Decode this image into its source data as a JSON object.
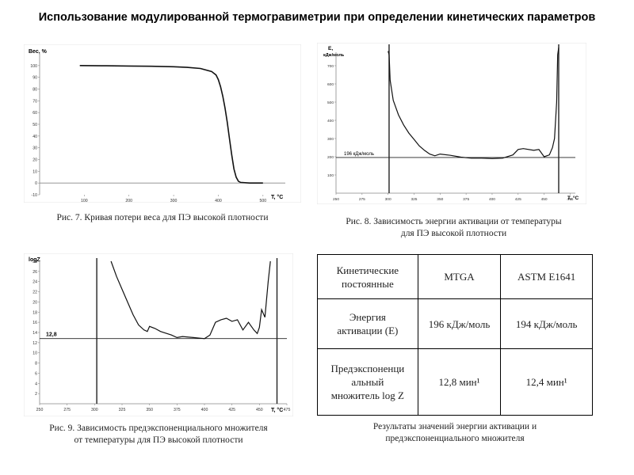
{
  "title": "Использование модулированной термогравиметрии при определении кинетических параметров",
  "figures": {
    "fig7": {
      "caption": "Рис. 7. Кривая потери веса для ПЭ высокой плотности",
      "ylabel": "Вес, %",
      "xlabel": "T, °C"
    },
    "fig8": {
      "caption_line1": "Рис. 8. Зависимость энергии активации от температуры",
      "caption_line2": "для ПЭ высокой плотности",
      "ylabel_line1": "E,",
      "ylabel_line2": "кДж/моль",
      "xlabel": "T, °C",
      "annotation": "196 кДж/моль"
    },
    "fig9": {
      "caption_line1": "Рис. 9. Зависимость предэкспоненциального множителя",
      "caption_line2": "от температуры для ПЭ высокой плотности",
      "ylabel": "logZ",
      "xlabel": "T, °C",
      "annotation": "12,8"
    }
  },
  "chart_data": [
    {
      "type": "line",
      "ylabel": "Вес, %",
      "xlabel": "T, °C",
      "xlim": [
        0,
        550
      ],
      "ylim": [
        -10,
        110
      ],
      "xticks": [
        "100",
        "200",
        "300",
        "400",
        "500"
      ],
      "yticks": [
        "-10",
        "0",
        "10",
        "20",
        "30",
        "40",
        "50",
        "60",
        "70",
        "80",
        "90",
        "100"
      ],
      "x": [
        90,
        150,
        200,
        250,
        300,
        330,
        360,
        385,
        395,
        400,
        405,
        410,
        415,
        420,
        425,
        430,
        435,
        440,
        445,
        450,
        470,
        500
      ],
      "y": [
        100,
        99.8,
        99.6,
        99.4,
        99,
        98.5,
        97.5,
        95,
        92,
        88,
        82,
        74,
        64,
        52,
        38,
        24,
        12,
        5,
        1.5,
        0.5,
        0,
        0
      ]
    },
    {
      "type": "line",
      "ylabel": "E, кДж/моль",
      "xlabel": "T, °C",
      "xlim": [
        250,
        480
      ],
      "ylim": [
        0,
        800
      ],
      "xticks": [
        "250",
        "275",
        "300",
        "325",
        "350",
        "375",
        "400",
        "425",
        "450",
        "475"
      ],
      "yticks": [
        "100",
        "200",
        "300",
        "400",
        "500",
        "600",
        "700"
      ],
      "hline": {
        "y": 196,
        "label": "196 кДж/моль"
      },
      "x": [
        300,
        301,
        302,
        305,
        310,
        315,
        320,
        325,
        330,
        335,
        340,
        345,
        350,
        360,
        370,
        380,
        390,
        400,
        410,
        420,
        425,
        430,
        440,
        445,
        450,
        455,
        458,
        460,
        462,
        463,
        464
      ],
      "y": [
        780,
        760,
        620,
        510,
        430,
        375,
        330,
        295,
        260,
        235,
        215,
        205,
        215,
        208,
        198,
        192,
        192,
        190,
        192,
        210,
        240,
        245,
        235,
        240,
        200,
        210,
        250,
        300,
        500,
        760,
        800
      ]
    },
    {
      "type": "line",
      "ylabel": "logZ",
      "xlabel": "T, °C",
      "xlim": [
        250,
        475
      ],
      "ylim": [
        0,
        28
      ],
      "xticks": [
        "250",
        "275",
        "300",
        "325",
        "350",
        "375",
        "400",
        "425",
        "450",
        "475"
      ],
      "yticks": [
        "2",
        "4",
        "6",
        "8",
        "10",
        "12",
        "14",
        "16",
        "18",
        "20",
        "22",
        "24",
        "26",
        "28"
      ],
      "hline": {
        "y": 12.8,
        "label": "12,8"
      },
      "x": [
        315,
        320,
        325,
        330,
        335,
        340,
        345,
        348,
        350,
        355,
        360,
        370,
        375,
        380,
        390,
        400,
        405,
        410,
        415,
        420,
        425,
        430,
        435,
        440,
        445,
        448,
        450,
        452,
        455,
        458,
        460
      ],
      "y": [
        28,
        25,
        22.5,
        20,
        17.5,
        15.5,
        14.5,
        14.2,
        15.2,
        14.8,
        14.2,
        13.5,
        13,
        13.2,
        13,
        12.8,
        13.5,
        16,
        16.5,
        16.8,
        16.2,
        16.5,
        14.5,
        16,
        14.5,
        13.8,
        15,
        18.5,
        17,
        24,
        28
      ]
    }
  ],
  "table": {
    "headers": [
      "Кинетические постоянные",
      "MTGA",
      "ASTM E1641"
    ],
    "rows": [
      [
        "Энергия активации (E)",
        "196 кДж/моль",
        "194 кДж/моль"
      ],
      [
        "Предэкспоненци альный множитель log Z",
        "12,8 мин¹",
        "12,4 мин¹"
      ]
    ],
    "header_lines": [
      "Кинетические",
      "постоянные"
    ],
    "row1_lines": [
      "Энергия",
      "активации (E)"
    ],
    "row2_lines": [
      "Предэкспоненци",
      "альный",
      "множитель log Z"
    ],
    "caption_line1": "Результаты значений энергии активации и",
    "caption_line2": "предэкспоненциального множителя"
  }
}
